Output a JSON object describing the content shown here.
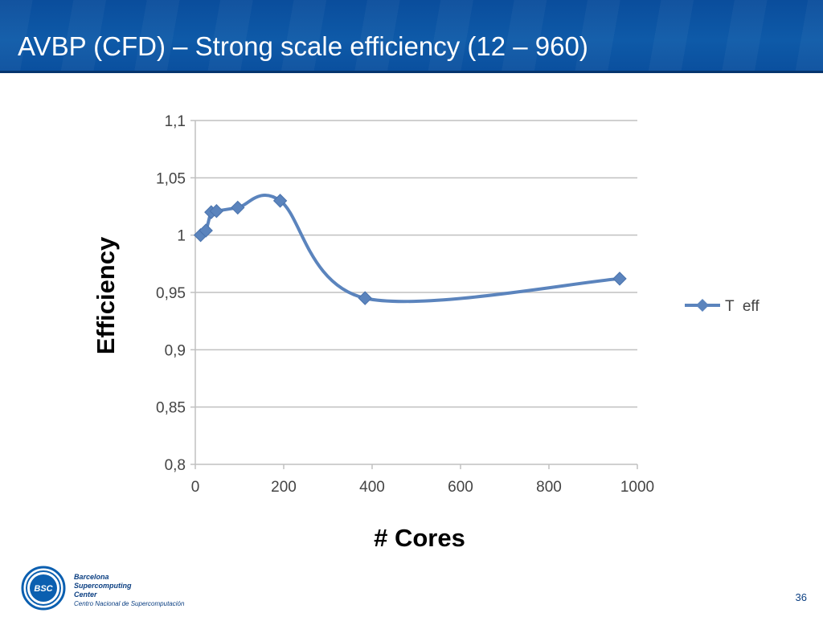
{
  "slide": {
    "title": "AVBP (CFD) – Strong scale efficiency (12 – 960)",
    "page_number": "36"
  },
  "logo": {
    "mark_text": "BSC",
    "line1": "Barcelona",
    "line2": "Supercomputing",
    "line3": "Center",
    "subtitle": "Centro Nacional de Supercomputación"
  },
  "colors": {
    "title_bar": "#0e5aa8",
    "series": "#5b84bd",
    "grid": "#c0c0c0"
  },
  "chart_data": {
    "type": "line",
    "smoothed": true,
    "marker": "diamond",
    "title": "",
    "xlabel": "# Cores",
    "ylabel": "Efficiency",
    "xlim": [
      0,
      1000
    ],
    "ylim": [
      0.8,
      1.1
    ],
    "x_ticks": [
      "0",
      "200",
      "400",
      "600",
      "800",
      "1000"
    ],
    "x_tick_values": [
      0,
      200,
      400,
      600,
      800,
      1000
    ],
    "y_ticks": [
      "0,8",
      "0,85",
      "0,9",
      "0,95",
      "1",
      "1,05",
      "1,1"
    ],
    "y_tick_values": [
      0.8,
      0.85,
      0.9,
      0.95,
      1.0,
      1.05,
      1.1
    ],
    "grid": "horizontal",
    "legend_position": "right",
    "series": [
      {
        "name": "T  eff",
        "x": [
          12,
          24,
          36,
          48,
          96,
          192,
          384,
          960
        ],
        "y": [
          1.0,
          1.004,
          1.02,
          1.021,
          1.024,
          1.03,
          0.945,
          0.962
        ]
      }
    ]
  }
}
